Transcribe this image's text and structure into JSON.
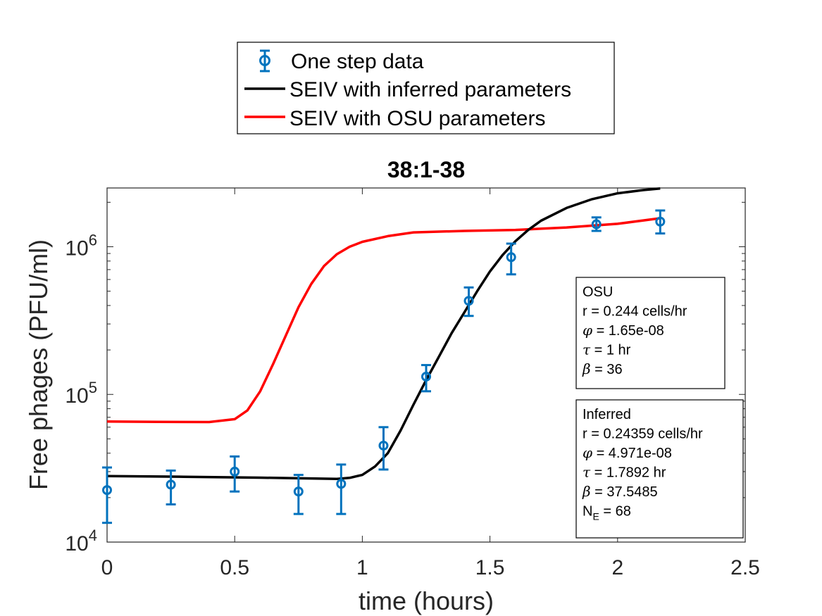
{
  "chart_data": {
    "type": "line",
    "title": "38:1-38",
    "xlabel": "time (hours)",
    "ylabel": "Free phages (PFU/ml)",
    "xlim": [
      0,
      2.5
    ],
    "ylim": [
      10000,
      2500000
    ],
    "yscale": "log",
    "grid": false,
    "legend_placement": "above-plot",
    "x_ticks": [
      "0",
      "0.5",
      "1",
      "1.5",
      "2",
      "2.5"
    ],
    "y_ticks": [
      {
        "base": "10",
        "exp": "4",
        "value": 10000
      },
      {
        "base": "10",
        "exp": "5",
        "value": 100000
      },
      {
        "base": "10",
        "exp": "6",
        "value": 1000000
      }
    ],
    "series": [
      {
        "name": "One step data",
        "kind": "errorbar",
        "color": "#0072BD",
        "x": [
          0,
          0.25,
          0.5,
          0.75,
          0.917,
          1.083,
          1.25,
          1.417,
          1.583,
          1.917,
          2.167
        ],
        "y": [
          22500,
          24500,
          30000,
          22000,
          24800,
          45000,
          132000,
          430000,
          850000,
          1420000,
          1480000
        ],
        "lower": [
          13500,
          18000,
          22000,
          15500,
          15500,
          31000,
          105000,
          340000,
          650000,
          1280000,
          1230000
        ],
        "upper": [
          32000,
          30500,
          38000,
          28500,
          33500,
          60000,
          158000,
          530000,
          1050000,
          1580000,
          1760000
        ]
      },
      {
        "name": "SEIV with inferred parameters",
        "kind": "line",
        "color": "#000000",
        "x": [
          0,
          0.3,
          0.6,
          0.9,
          0.95,
          1.0,
          1.05,
          1.1,
          1.15,
          1.2,
          1.25,
          1.3,
          1.35,
          1.4,
          1.45,
          1.5,
          1.55,
          1.6,
          1.65,
          1.7,
          1.8,
          1.9,
          2.0,
          2.1,
          2.167
        ],
        "y": [
          28000,
          27700,
          27300,
          26800,
          27200,
          28500,
          32500,
          40000,
          57000,
          85000,
          125000,
          180000,
          260000,
          360000,
          500000,
          680000,
          880000,
          1090000,
          1300000,
          1500000,
          1830000,
          2100000,
          2300000,
          2420000,
          2480000
        ]
      },
      {
        "name": "SEIV with OSU parameters",
        "kind": "line",
        "color": "#FF0000",
        "x": [
          0,
          0.2,
          0.4,
          0.5,
          0.55,
          0.6,
          0.65,
          0.7,
          0.75,
          0.8,
          0.85,
          0.9,
          0.95,
          1.0,
          1.1,
          1.2,
          1.4,
          1.6,
          1.8,
          2.0,
          2.167
        ],
        "y": [
          65500,
          65200,
          65000,
          68000,
          78000,
          105000,
          160000,
          250000,
          390000,
          560000,
          740000,
          890000,
          1000000,
          1080000,
          1180000,
          1250000,
          1280000,
          1300000,
          1350000,
          1430000,
          1560000
        ]
      }
    ],
    "annotations": [
      {
        "id": "osu",
        "lines": [
          {
            "text": "OSU"
          },
          {
            "text": "r = 0.244 cells/hr"
          },
          {
            "symbol": "φ",
            "text": " = 1.65e-08"
          },
          {
            "symbol": "τ",
            "text": " = 1 hr"
          },
          {
            "symbol": "β",
            "text": " = 36"
          }
        ]
      },
      {
        "id": "inferred",
        "lines": [
          {
            "text": "Inferred"
          },
          {
            "text": "r = 0.24359 cells/hr"
          },
          {
            "symbol": "φ",
            "text": " = 4.971e-08"
          },
          {
            "symbol": "τ",
            "text": " = 1.7892 hr"
          },
          {
            "symbol": "β",
            "text": " = 37.5485"
          },
          {
            "text": "N",
            "subscript": "E",
            "suffix": " = 68"
          }
        ]
      }
    ]
  }
}
